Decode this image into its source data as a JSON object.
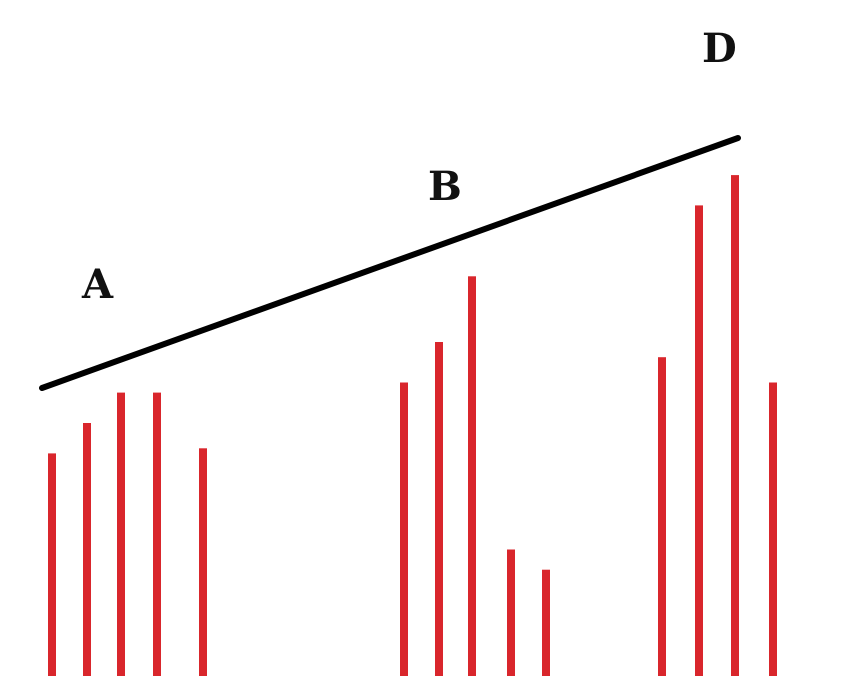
{
  "labels": {
    "a": "A",
    "b": "B",
    "d": "D"
  },
  "colors": {
    "bar": "#d9262c",
    "trendline": "#000000",
    "label": "#111111",
    "background": "#ffffff"
  },
  "bar_groups": [
    {
      "name": "A",
      "relative_heights": [
        0.44,
        0.5,
        0.56,
        0.56,
        0.45
      ]
    },
    {
      "name": "B",
      "relative_heights": [
        0.58,
        0.66,
        0.79,
        0.25,
        0.21
      ]
    },
    {
      "name": "D",
      "relative_heights": [
        0.63,
        0.93,
        0.99,
        0.58
      ]
    }
  ]
}
